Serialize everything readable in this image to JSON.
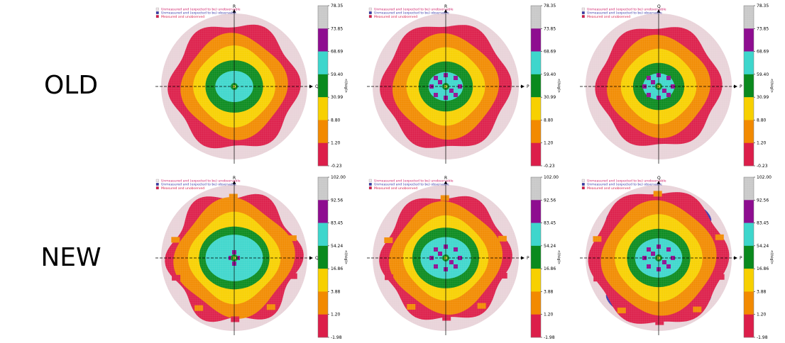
{
  "rows": [
    {
      "label": "OLD"
    },
    {
      "label": "NEW"
    }
  ],
  "legend": [
    {
      "text": "Unmeasured and (expected to be) unobservable",
      "swatch": "#f2e6ea",
      "text_color": "#d0206a"
    },
    {
      "text": "Unmeasured and (expected to be) observable",
      "swatch": "#3a3aaa",
      "text_color": "#3a3aaa"
    },
    {
      "text": "Measured and unobserved",
      "swatch": "#d81b4a",
      "text_color": "#d81b4a"
    }
  ],
  "band_colors": [
    "#dc1e4a",
    "#f28a00",
    "#f7d000",
    "#0a8a1e",
    "#3ed6cc",
    "#8e0d90",
    "#c7c7c7"
  ],
  "colors": {
    "unobservable": "#e8d2d8",
    "observable": "#3b3bb0",
    "marker": "#ffff40"
  },
  "colorbar_title": "<I/sigI>",
  "chart_data": [
    {
      "type": "heatmap",
      "row": "OLD",
      "col": 1,
      "axes": {
        "vertical": "R",
        "horizontal": "Q"
      },
      "colorbar_ticks": [
        "78.35",
        "73.85",
        "68.69",
        "59.40",
        "30.99",
        "8.80",
        "1.20",
        "-0.23"
      ],
      "range": [
        -0.23,
        78.35
      ]
    },
    {
      "type": "heatmap",
      "row": "OLD",
      "col": 2,
      "axes": {
        "vertical": "R",
        "horizontal": "P"
      },
      "colorbar_ticks": [
        "78.35",
        "73.85",
        "68.69",
        "59.40",
        "30.99",
        "8.80",
        "1.20",
        "-0.23"
      ],
      "range": [
        -0.23,
        78.35
      ]
    },
    {
      "type": "heatmap",
      "row": "OLD",
      "col": 3,
      "axes": {
        "vertical": "Q",
        "horizontal": "P"
      },
      "colorbar_ticks": [
        "78.35",
        "73.85",
        "68.69",
        "59.40",
        "30.99",
        "8.80",
        "1.20",
        "-0.23"
      ],
      "range": [
        -0.23,
        78.35
      ]
    },
    {
      "type": "heatmap",
      "row": "NEW",
      "col": 1,
      "axes": {
        "vertical": "R",
        "horizontal": "Q"
      },
      "colorbar_ticks": [
        "102.00",
        "92.56",
        "83.45",
        "54.24",
        "16.86",
        "3.88",
        "1.20",
        "-1.98"
      ],
      "range": [
        -1.98,
        102.0
      ]
    },
    {
      "type": "heatmap",
      "row": "NEW",
      "col": 2,
      "axes": {
        "vertical": "R",
        "horizontal": "P"
      },
      "colorbar_ticks": [
        "102.00",
        "92.56",
        "83.45",
        "54.24",
        "16.86",
        "3.88",
        "1.20",
        "-1.98"
      ],
      "range": [
        -1.98,
        102.0
      ]
    },
    {
      "type": "heatmap",
      "row": "NEW",
      "col": 3,
      "axes": {
        "vertical": "Q",
        "horizontal": "P"
      },
      "colorbar_ticks": [
        "102.00",
        "92.56",
        "83.45",
        "54.24",
        "16.86",
        "3.88",
        "1.20",
        "-1.98"
      ],
      "range": [
        -1.98,
        102.0
      ]
    }
  ]
}
